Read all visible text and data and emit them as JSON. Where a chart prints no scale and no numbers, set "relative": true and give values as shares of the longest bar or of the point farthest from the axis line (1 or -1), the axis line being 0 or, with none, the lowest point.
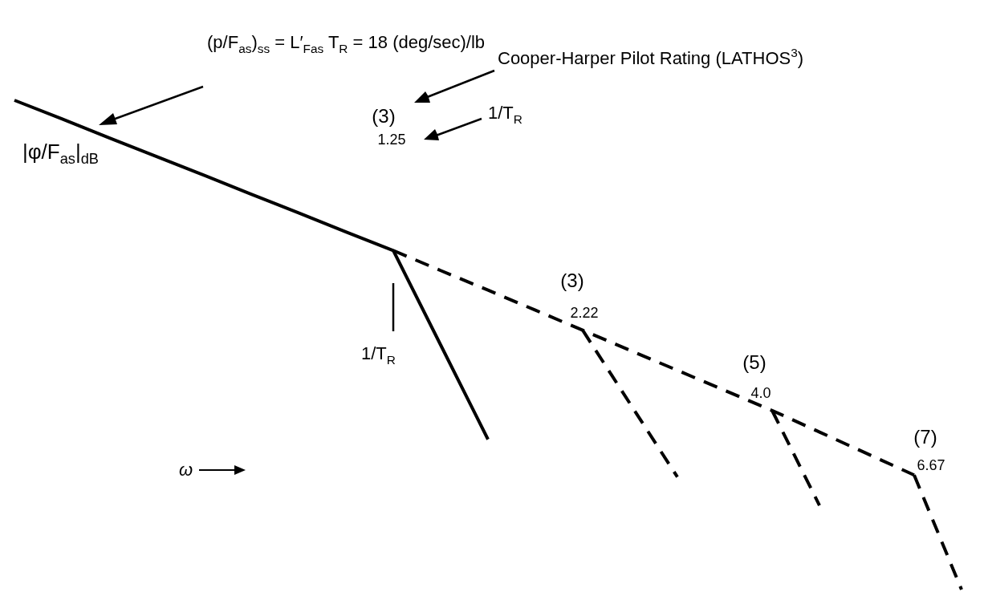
{
  "chart_data": {
    "type": "line",
    "relative": true,
    "xlabel": "ω",
    "ylabel": "|φ/F$_{as}$|$_{dB}$",
    "categories": [
      null,
      null,
      null,
      null,
      null,
      null,
      null,
      null,
      null,
      null,
      null,
      null,
      null,
      null,
      null,
      null,
      null,
      null,
      null,
      null,
      null
    ],
    "series": [
      {
        "color": "#000000",
        "line_style": "solid",
        "values": [
          1,
          0.962,
          0.923,
          0.885,
          0.847,
          0.808,
          0.77,
          0.731,
          0.693,
          0.5,
          0.307,
          null,
          null,
          null,
          null,
          null,
          null,
          null,
          null,
          null,
          null
        ]
      },
      {
        "color": "#000000",
        "line_style": "dashed",
        "values": [
          null,
          null,
          null,
          null,
          null,
          null,
          null,
          null,
          0.693,
          0.652,
          0.612,
          0.571,
          0.53,
          0.489,
          0.448,
          0.407,
          0.366,
          0.322,
          0.278,
          0.234,
          null
        ]
      },
      {
        "color": "#000000",
        "line_style": "dashed",
        "values": [
          null,
          null,
          null,
          null,
          null,
          null,
          null,
          null,
          null,
          null,
          null,
          null,
          0.53,
          0.38,
          0.23,
          null,
          null,
          null,
          null,
          null,
          null
        ]
      },
      {
        "color": "#000000",
        "line_style": "dashed",
        "values": [
          null,
          null,
          null,
          null,
          null,
          null,
          null,
          null,
          null,
          null,
          null,
          null,
          null,
          null,
          null,
          null,
          0.366,
          0.172,
          null,
          null,
          null
        ]
      },
      {
        "color": "#000000",
        "line_style": "dashed",
        "values": [
          null,
          null,
          null,
          null,
          null,
          null,
          null,
          null,
          null,
          null,
          null,
          null,
          null,
          null,
          null,
          null,
          null,
          null,
          null,
          0.234,
          0
        ]
      }
    ],
    "annotations": [
      "(p/F$_{as}$)$_{ss}$ = L′$_{Fas}$ T$_{R}$ = 18 (deg/sec)/lb",
      "Cooper-Harper Pilot Rating (LATHOS$^{3}$)",
      "1/T$_{R}$",
      "1/T$_{R}$",
      "(3)",
      "1.25",
      "(3)",
      "2.22",
      "(5)",
      "4.0",
      "(7)",
      "6.67"
    ]
  }
}
